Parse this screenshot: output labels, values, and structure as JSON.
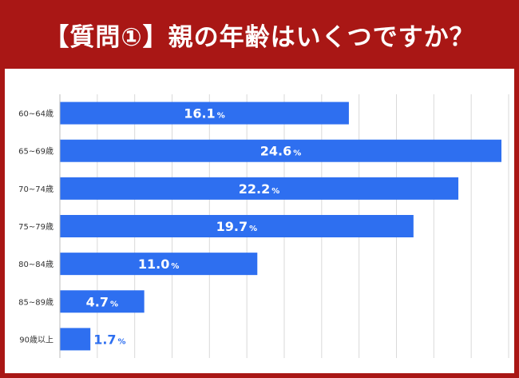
{
  "title": "【質問①】親の年齢はいくつですか？",
  "colors": {
    "frame": "#a91715",
    "bar": "#2e6ff0",
    "label_inside": "#ffffff",
    "label_outside": "#2e6ff0",
    "grid": "#d9d9d9"
  },
  "chart_data": {
    "type": "bar",
    "orientation": "horizontal",
    "categories": [
      "60~64歳",
      "65~69歳",
      "70~74歳",
      "75~79歳",
      "80~84歳",
      "85~89歳",
      "90歳以上"
    ],
    "values": [
      16.1,
      24.6,
      22.2,
      19.7,
      11.0,
      4.7,
      1.7
    ],
    "data_labels": [
      "16.1",
      "24.6",
      "22.2",
      "19.7",
      "11.0",
      "4.7",
      "1.7"
    ],
    "unit": "%",
    "xlim": [
      0,
      25
    ],
    "grid": true,
    "legend": false
  }
}
